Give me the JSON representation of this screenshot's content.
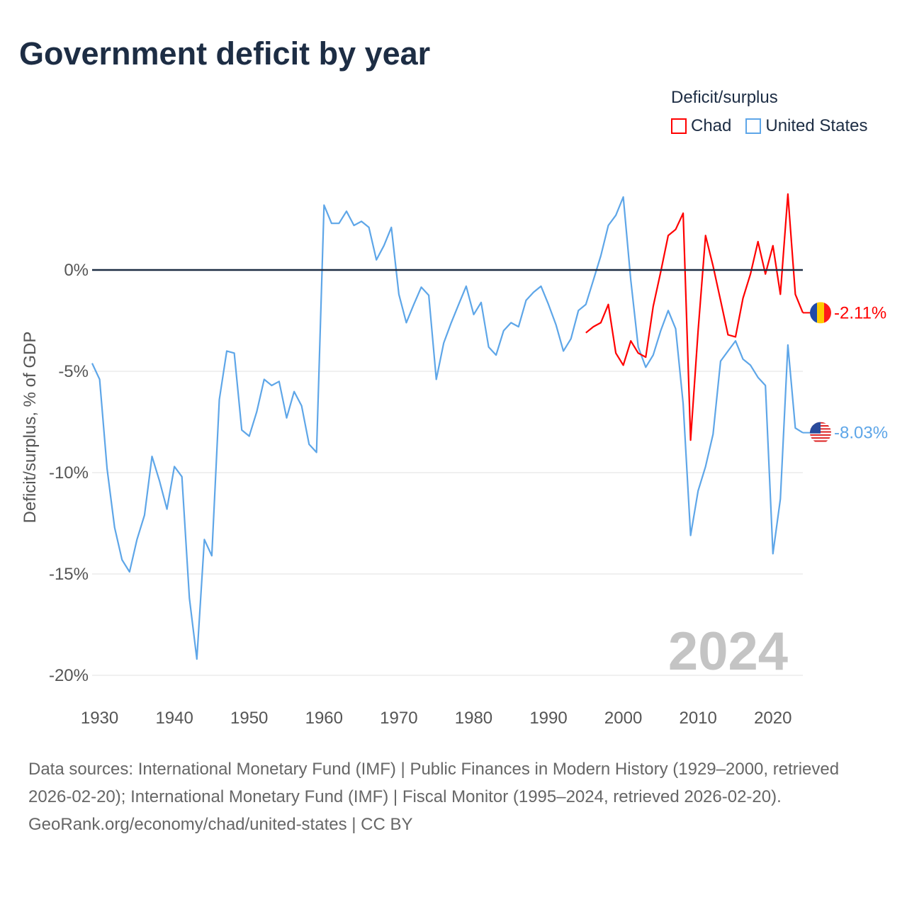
{
  "title": "Government deficit by year",
  "legend": {
    "title": "Deficit/surplus",
    "items": [
      {
        "name": "Chad",
        "color": "#ff0000"
      },
      {
        "name": "United States",
        "color": "#5ea6e8"
      }
    ]
  },
  "year_watermark": "2024",
  "footer": {
    "sources": "Data sources: International Monetary Fund (IMF) | Public Finances in Modern History (1929–2000, retrieved 2026-02-20); International Monetary Fund (IMF) | Fiscal Monitor (1995–2024, retrieved 2026-02-20).",
    "credit": "GeoRank.org/economy/chad/united-states | CC BY"
  },
  "chart_data": {
    "type": "line",
    "title": "Government deficit by year",
    "xlabel": "",
    "ylabel": "Deficit/surplus, % of GDP",
    "xlim": [
      1929,
      2024
    ],
    "ylim": [
      -20,
      4
    ],
    "xticks": [
      1930,
      1940,
      1950,
      1960,
      1970,
      1980,
      1990,
      2000,
      2010,
      2020
    ],
    "yticks": [
      {
        "v": 0,
        "label": "0%"
      },
      {
        "v": -5,
        "label": "-5%"
      },
      {
        "v": -10,
        "label": "-10%"
      },
      {
        "v": -15,
        "label": "-15%"
      },
      {
        "v": -20,
        "label": "-20%"
      }
    ],
    "grid": true,
    "legend_position": "top-right",
    "series": [
      {
        "name": "Chad",
        "color": "#ff0000",
        "start_year": 1995,
        "end_label": "-2.11%",
        "values": [
          -3.1,
          -2.8,
          -2.6,
          -1.7,
          -4.1,
          -4.7,
          -3.5,
          -4.1,
          -4.3,
          -1.8,
          -0.1,
          1.7,
          2.0,
          2.8,
          -8.4,
          -3.0,
          1.7,
          0.2,
          -1.5,
          -3.2,
          -3.3,
          -1.4,
          -0.2,
          1.4,
          -0.2,
          1.2,
          -1.2,
          3.75,
          -1.2,
          -2.11
        ]
      },
      {
        "name": "United States",
        "color": "#5ea6e8",
        "start_year": 1929,
        "end_label": "-8.03%",
        "values": [
          -4.6,
          -5.4,
          -9.8,
          -12.7,
          -14.3,
          -14.9,
          -13.3,
          -12.1,
          -9.2,
          -10.4,
          -11.8,
          -9.7,
          -10.2,
          -16.2,
          -19.2,
          -13.3,
          -14.1,
          -6.4,
          -4.0,
          -4.1,
          -7.9,
          -8.2,
          -7.0,
          -5.4,
          -5.7,
          -5.5,
          -7.3,
          -6.0,
          -6.7,
          -8.6,
          -9.0,
          3.2,
          2.3,
          2.3,
          2.9,
          2.2,
          2.4,
          2.1,
          0.5,
          1.2,
          2.1,
          -1.2,
          -2.6,
          -1.7,
          -0.85,
          -1.25,
          -5.4,
          -3.6,
          -2.6,
          -1.7,
          -0.8,
          -2.2,
          -1.6,
          -3.8,
          -4.2,
          -3.0,
          -2.6,
          -2.8,
          -1.5,
          -1.1,
          -0.8,
          -1.7,
          -2.7,
          -4.0,
          -3.4,
          -2.0,
          -1.7,
          -0.5,
          0.7,
          2.2,
          2.7,
          3.6,
          -0.5,
          -3.8,
          -4.8,
          -4.2,
          -3.0,
          -2.0,
          -2.9,
          -6.6,
          -13.1,
          -10.9,
          -9.7,
          -8.1,
          -4.5,
          -4.0,
          -3.5,
          -4.4,
          -4.7,
          -5.3,
          -5.7,
          -14.0,
          -11.3,
          -3.7,
          -7.8,
          -8.03
        ]
      }
    ]
  }
}
